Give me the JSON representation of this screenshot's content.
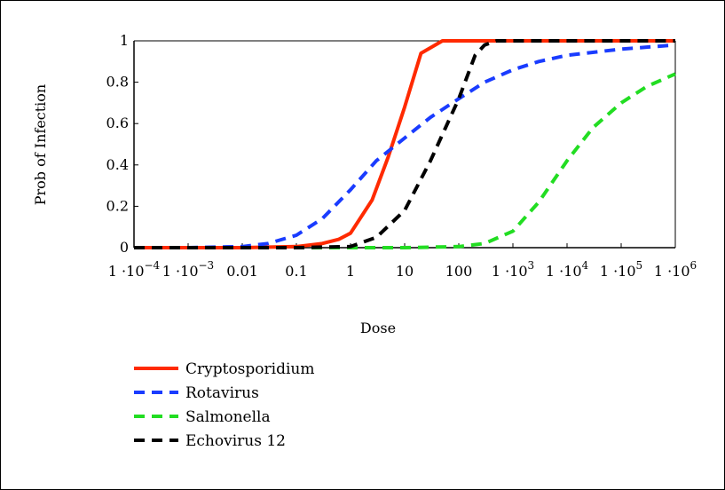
{
  "chart_data": {
    "type": "line",
    "xlabel": "Dose",
    "ylabel": "Prob of Infection",
    "x_scale": "log",
    "xlim": [
      0.0001,
      1000000
    ],
    "ylim": [
      0,
      1
    ],
    "x_ticks": [
      {
        "value": 0.0001,
        "mantissa": "1 ·10",
        "exp": "−4"
      },
      {
        "value": 0.001,
        "mantissa": "1 ·10",
        "exp": "−3"
      },
      {
        "value": 0.01,
        "text": "0.01"
      },
      {
        "value": 0.1,
        "text": "0.1"
      },
      {
        "value": 1,
        "text": "1"
      },
      {
        "value": 10,
        "text": "10"
      },
      {
        "value": 100,
        "text": "100"
      },
      {
        "value": 1000,
        "mantissa": "1 ·10",
        "exp": "3"
      },
      {
        "value": 10000,
        "mantissa": "1 ·10",
        "exp": "4"
      },
      {
        "value": 100000,
        "mantissa": "1 ·10",
        "exp": "5"
      },
      {
        "value": 1000000,
        "mantissa": "1 ·10",
        "exp": "6"
      }
    ],
    "y_ticks": [
      {
        "value": 0,
        "text": "0"
      },
      {
        "value": 0.2,
        "text": "0.2"
      },
      {
        "value": 0.4,
        "text": "0.4"
      },
      {
        "value": 0.6,
        "text": "0.6"
      },
      {
        "value": 0.8,
        "text": "0.8"
      },
      {
        "value": 1,
        "text": "1"
      }
    ],
    "grid": false,
    "legend_position": "bottom-left",
    "series": [
      {
        "name": "Cryptosporidium",
        "color": "#ff2a00",
        "dash": "solid",
        "x": [
          0.0001,
          0.001,
          0.01,
          0.1,
          0.3,
          0.6,
          1,
          2.5,
          5,
          10,
          20,
          50,
          100,
          1000,
          1000000
        ],
        "y": [
          0,
          0,
          0,
          0.005,
          0.02,
          0.04,
          0.07,
          0.23,
          0.44,
          0.68,
          0.94,
          1,
          1,
          1,
          1
        ]
      },
      {
        "name": "Rotavirus",
        "color": "#1a3cff",
        "dash": "dashed",
        "x": [
          0.0001,
          0.001,
          0.01,
          0.03,
          0.1,
          0.3,
          1,
          3,
          10,
          30,
          100,
          300,
          1000,
          3000,
          10000,
          100000,
          1000000
        ],
        "y": [
          0,
          0,
          0.005,
          0.02,
          0.06,
          0.14,
          0.28,
          0.42,
          0.53,
          0.63,
          0.72,
          0.8,
          0.86,
          0.9,
          0.93,
          0.96,
          0.98
        ]
      },
      {
        "name": "Salmonella",
        "color": "#22dd22",
        "dash": "dashed",
        "x": [
          0.0001,
          1,
          10,
          100,
          300,
          1000,
          3000,
          10000,
          30000,
          100000,
          300000,
          1000000
        ],
        "y": [
          0,
          0,
          0,
          0.005,
          0.02,
          0.08,
          0.22,
          0.42,
          0.58,
          0.7,
          0.78,
          0.84
        ]
      },
      {
        "name": "Echovirus 12",
        "color": "#000000",
        "dash": "dashed",
        "x": [
          0.0001,
          0.1,
          1,
          3,
          10,
          30,
          100,
          200,
          300,
          500,
          1000000
        ],
        "y": [
          0,
          0,
          0.005,
          0.05,
          0.18,
          0.42,
          0.72,
          0.93,
          0.98,
          1,
          1
        ]
      }
    ]
  }
}
